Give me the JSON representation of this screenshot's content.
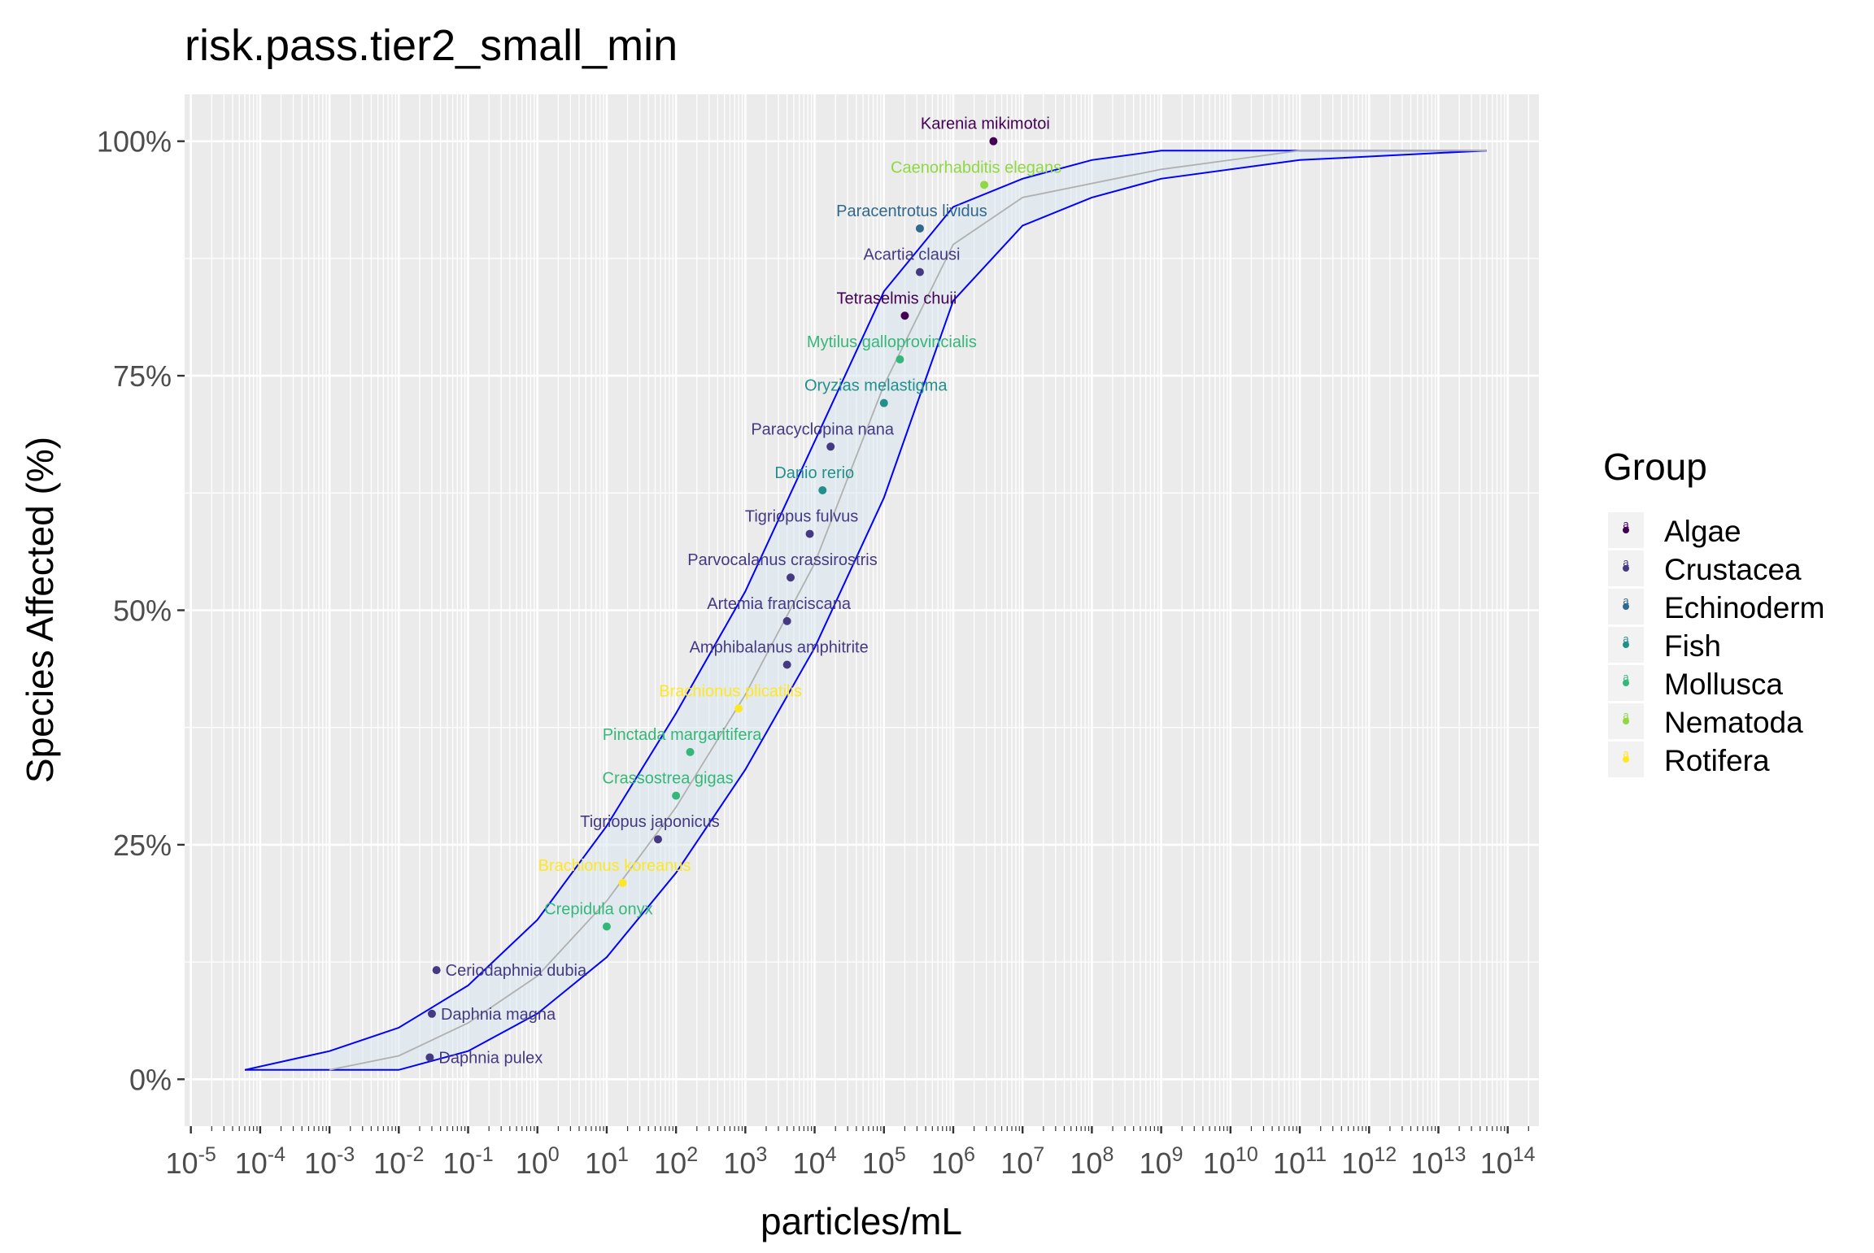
{
  "chart_data": {
    "type": "scatter",
    "title": "risk.pass.tier2_small_min",
    "xlabel": "particles/mL",
    "ylabel": "Species Affected (%)",
    "x_scale": "log10",
    "xlim": [
      1e-05,
      100000000000000.0
    ],
    "ylim": [
      0,
      1
    ],
    "x_ticks": [
      {
        "value": 1e-05,
        "base": "10",
        "exp": "-5"
      },
      {
        "value": 0.0001,
        "base": "10",
        "exp": "-4"
      },
      {
        "value": 0.001,
        "base": "10",
        "exp": "-3"
      },
      {
        "value": 0.01,
        "base": "10",
        "exp": "-2"
      },
      {
        "value": 0.1,
        "base": "10",
        "exp": "-1"
      },
      {
        "value": 1,
        "base": "10",
        "exp": "0"
      },
      {
        "value": 10.0,
        "base": "10",
        "exp": "1"
      },
      {
        "value": 100.0,
        "base": "10",
        "exp": "2"
      },
      {
        "value": 1000.0,
        "base": "10",
        "exp": "3"
      },
      {
        "value": 10000.0,
        "base": "10",
        "exp": "4"
      },
      {
        "value": 100000.0,
        "base": "10",
        "exp": "5"
      },
      {
        "value": 1000000.0,
        "base": "10",
        "exp": "6"
      },
      {
        "value": 10000000.0,
        "base": "10",
        "exp": "7"
      },
      {
        "value": 100000000.0,
        "base": "10",
        "exp": "8"
      },
      {
        "value": 1000000000.0,
        "base": "10",
        "exp": "9"
      },
      {
        "value": 10000000000.0,
        "base": "10",
        "exp": "10"
      },
      {
        "value": 100000000000.0,
        "base": "10",
        "exp": "11"
      },
      {
        "value": 1000000000000.0,
        "base": "10",
        "exp": "12"
      },
      {
        "value": 10000000000000.0,
        "base": "10",
        "exp": "13"
      },
      {
        "value": 100000000000000.0,
        "base": "10",
        "exp": "14"
      }
    ],
    "y_ticks": [
      {
        "value": 0,
        "label": "0%"
      },
      {
        "value": 0.25,
        "label": "25%"
      },
      {
        "value": 0.5,
        "label": "50%"
      },
      {
        "value": 0.75,
        "label": "75%"
      },
      {
        "value": 1,
        "label": "100%"
      }
    ],
    "grid": true,
    "legend": {
      "title": "Group",
      "placement": "right",
      "entries": [
        {
          "name": "Algae",
          "color": "#440154"
        },
        {
          "name": "Crustacea",
          "color": "#443a83"
        },
        {
          "name": "Echinoderm",
          "color": "#31688e"
        },
        {
          "name": "Fish",
          "color": "#21908d"
        },
        {
          "name": "Mollusca",
          "color": "#35b779"
        },
        {
          "name": "Nematoda",
          "color": "#8fd744"
        },
        {
          "name": "Rotifera",
          "color": "#fde725"
        }
      ]
    },
    "points": [
      {
        "species": "Daphnia pulex",
        "group": "Crustacea",
        "x": 0.028,
        "y": 0.0233
      },
      {
        "species": "Daphnia magna",
        "group": "Crustacea",
        "x": 0.03,
        "y": 0.0698
      },
      {
        "species": "Ceriodaphnia dubia",
        "group": "Crustacea",
        "x": 0.035,
        "y": 0.1163
      },
      {
        "species": "Crepidula onyx",
        "group": "Mollusca",
        "x": 10,
        "y": 0.1628
      },
      {
        "species": "Brachionus koreanus",
        "group": "Rotifera",
        "x": 17,
        "y": 0.2093
      },
      {
        "species": "Tigriopus japonicus",
        "group": "Crustacea",
        "x": 55,
        "y": 0.2558
      },
      {
        "species": "Crassostrea gigas",
        "group": "Mollusca",
        "x": 100,
        "y": 0.3023
      },
      {
        "species": "Pinctada margaritifera",
        "group": "Mollusca",
        "x": 160,
        "y": 0.3488
      },
      {
        "species": "Brachionus plicatilis",
        "group": "Rotifera",
        "x": 800,
        "y": 0.3953
      },
      {
        "species": "Amphibalanus amphitrite",
        "group": "Crustacea",
        "x": 4000,
        "y": 0.4419
      },
      {
        "species": "Artemia franciscana",
        "group": "Crustacea",
        "x": 4000,
        "y": 0.4884
      },
      {
        "species": "Parvocalanus crassirostris",
        "group": "Crustacea",
        "x": 4500,
        "y": 0.5349
      },
      {
        "species": "Tigriopus fulvus",
        "group": "Crustacea",
        "x": 8500,
        "y": 0.5814
      },
      {
        "species": "Danio rerio",
        "group": "Fish",
        "x": 13000,
        "y": 0.6279
      },
      {
        "species": "Paracyclopina nana",
        "group": "Crustacea",
        "x": 17000,
        "y": 0.6744
      },
      {
        "species": "Oryzias melastigma",
        "group": "Fish",
        "x": 100000,
        "y": 0.7209
      },
      {
        "species": "Mytilus galloprovincialis",
        "group": "Mollusca",
        "x": 170000,
        "y": 0.7674
      },
      {
        "species": "Tetraselmis chuii",
        "group": "Algae",
        "x": 200000,
        "y": 0.814
      },
      {
        "species": "Acartia clausi",
        "group": "Crustacea",
        "x": 330000,
        "y": 0.8605
      },
      {
        "species": "Paracentrotus lividus",
        "group": "Echinoderm",
        "x": 330000,
        "y": 0.907
      },
      {
        "species": "Caenorhabditis elegans",
        "group": "Nematoda",
        "x": 2800000,
        "y": 0.9535
      },
      {
        "species": "Karenia mikimotoi",
        "group": "Algae",
        "x": 3800000,
        "y": 1.0
      }
    ],
    "fit_curve": {
      "name": "fit",
      "points": [
        {
          "x": 0.001,
          "y": 0.01
        },
        {
          "x": 0.01,
          "y": 0.025
        },
        {
          "x": 0.1,
          "y": 0.06
        },
        {
          "x": 1,
          "y": 0.11
        },
        {
          "x": 10,
          "y": 0.19
        },
        {
          "x": 100,
          "y": 0.29
        },
        {
          "x": 1000,
          "y": 0.41
        },
        {
          "x": 10000,
          "y": 0.55
        },
        {
          "x": 100000,
          "y": 0.74
        },
        {
          "x": 1000000,
          "y": 0.89
        },
        {
          "x": 10000000,
          "y": 0.94
        },
        {
          "x": 1000000000,
          "y": 0.97
        },
        {
          "x": 100000000000,
          "y": 0.99
        },
        {
          "x": 50000000000000,
          "y": 0.99
        }
      ]
    },
    "confidence_band": {
      "upper": [
        {
          "x": 6e-05,
          "y": 0.01
        },
        {
          "x": 0.001,
          "y": 0.03
        },
        {
          "x": 0.01,
          "y": 0.055
        },
        {
          "x": 0.1,
          "y": 0.1
        },
        {
          "x": 1,
          "y": 0.17
        },
        {
          "x": 10,
          "y": 0.27
        },
        {
          "x": 100,
          "y": 0.39
        },
        {
          "x": 1000,
          "y": 0.52
        },
        {
          "x": 10000,
          "y": 0.68
        },
        {
          "x": 100000,
          "y": 0.84
        },
        {
          "x": 1000000,
          "y": 0.93
        },
        {
          "x": 10000000,
          "y": 0.96
        },
        {
          "x": 100000000,
          "y": 0.98
        },
        {
          "x": 1000000000,
          "y": 0.99
        },
        {
          "x": 50000000000000,
          "y": 0.99
        }
      ],
      "lower": [
        {
          "x": 6e-05,
          "y": 0.01
        },
        {
          "x": 0.001,
          "y": 0.01
        },
        {
          "x": 0.01,
          "y": 0.01
        },
        {
          "x": 0.1,
          "y": 0.03
        },
        {
          "x": 1,
          "y": 0.07
        },
        {
          "x": 10,
          "y": 0.13
        },
        {
          "x": 100,
          "y": 0.22
        },
        {
          "x": 1000,
          "y": 0.33
        },
        {
          "x": 10000,
          "y": 0.46
        },
        {
          "x": 100000,
          "y": 0.62
        },
        {
          "x": 1000000,
          "y": 0.83
        },
        {
          "x": 10000000,
          "y": 0.91
        },
        {
          "x": 100000000,
          "y": 0.94
        },
        {
          "x": 1000000000,
          "y": 0.96
        },
        {
          "x": 100000000000,
          "y": 0.98
        },
        {
          "x": 50000000000000,
          "y": 0.99
        }
      ]
    }
  }
}
